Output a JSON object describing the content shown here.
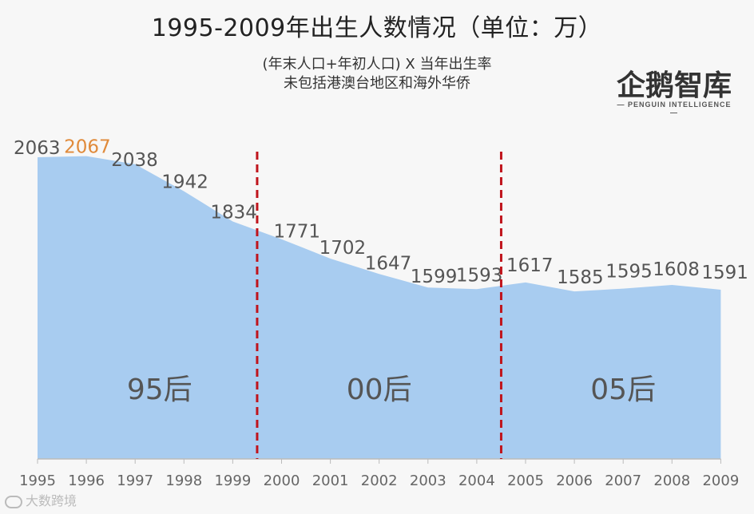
{
  "header": {
    "title": "1995-2009年出生人数情况（单位：万）",
    "subtitle_line1": "(年末人口+年初人口) X 当年出生率",
    "subtitle_line2": "未包括港澳台地区和海外华侨"
  },
  "logo": {
    "text": "企鹅智库",
    "sub": "— PENGUIN INTELLIGENCE —"
  },
  "watermark": "大数跨境",
  "eras": [
    "95后",
    "00后",
    "05后"
  ],
  "colors": {
    "area": "#a8ccf0",
    "divider": "#c0141c",
    "highlight": "#e08a3a"
  },
  "chart_data": {
    "type": "area",
    "title": "1995-2009年出生人数情况（单位：万）",
    "categories": [
      "1995",
      "1996",
      "1997",
      "1998",
      "1999",
      "2000",
      "2001",
      "2002",
      "2003",
      "2004",
      "2005",
      "2006",
      "2007",
      "2008",
      "2009"
    ],
    "values": [
      2063,
      2067,
      2038,
      1942,
      1834,
      1771,
      1702,
      1647,
      1599,
      1593,
      1617,
      1585,
      1595,
      1608,
      1591
    ],
    "highlight": "1996",
    "dividers": [
      "1999-2000",
      "2004-2005"
    ],
    "grid": false,
    "legend": "none"
  }
}
